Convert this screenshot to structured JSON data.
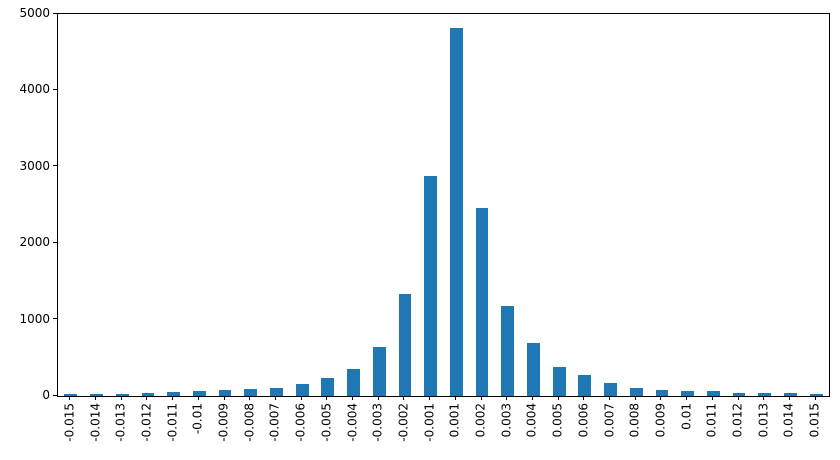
{
  "figure": {
    "background": "#ffffff"
  },
  "chart_data": {
    "type": "bar",
    "title": "",
    "xlabel": "",
    "ylabel": "",
    "categories": [
      "-0.015",
      "-0.014",
      "-0.013",
      "-0.012",
      "-0.011",
      "-0.01",
      "-0.009",
      "-0.008",
      "-0.007",
      "-0.006",
      "-0.005",
      "-0.004",
      "-0.003",
      "-0.002",
      "-0.001",
      "0.001",
      "0.002",
      "0.003",
      "0.004",
      "0.005",
      "0.006",
      "0.007",
      "0.008",
      "0.009",
      "0.01",
      "0.011",
      "0.012",
      "0.013",
      "0.014",
      "0.015"
    ],
    "values": [
      25,
      20,
      25,
      45,
      50,
      65,
      80,
      90,
      105,
      160,
      240,
      350,
      645,
      1340,
      2880,
      4820,
      2460,
      1180,
      690,
      375,
      275,
      175,
      110,
      80,
      70,
      65,
      35,
      40,
      40,
      22
    ],
    "ylim": [
      0,
      5000
    ],
    "yticks": [
      0,
      1000,
      2000,
      3000,
      4000,
      5000
    ],
    "bar_color": "#1f77b4",
    "spine_color": "#000000",
    "x_tick_label_rotation": 90,
    "bar_rel_width": 0.5,
    "grid": false
  }
}
